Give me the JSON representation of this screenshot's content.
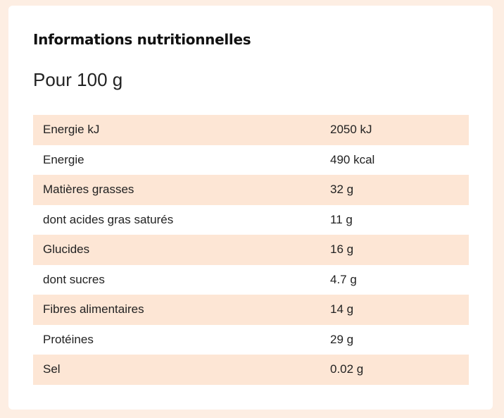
{
  "header": {
    "title": "Informations nutritionnelles",
    "subtitle": "Pour 100 g"
  },
  "table": {
    "rows": [
      [
        "Energie kJ",
        "2050 kJ"
      ],
      [
        "Energie",
        "490 kcal"
      ],
      [
        "Matières grasses",
        "32 g"
      ],
      [
        "dont acides gras saturés",
        "11 g"
      ],
      [
        "Glucides",
        "16 g"
      ],
      [
        "dont sucres",
        "4.7 g"
      ],
      [
        "Fibres alimentaires",
        "14 g"
      ],
      [
        "Protéines",
        "29 g"
      ],
      [
        "Sel",
        "0.02 g"
      ]
    ]
  }
}
